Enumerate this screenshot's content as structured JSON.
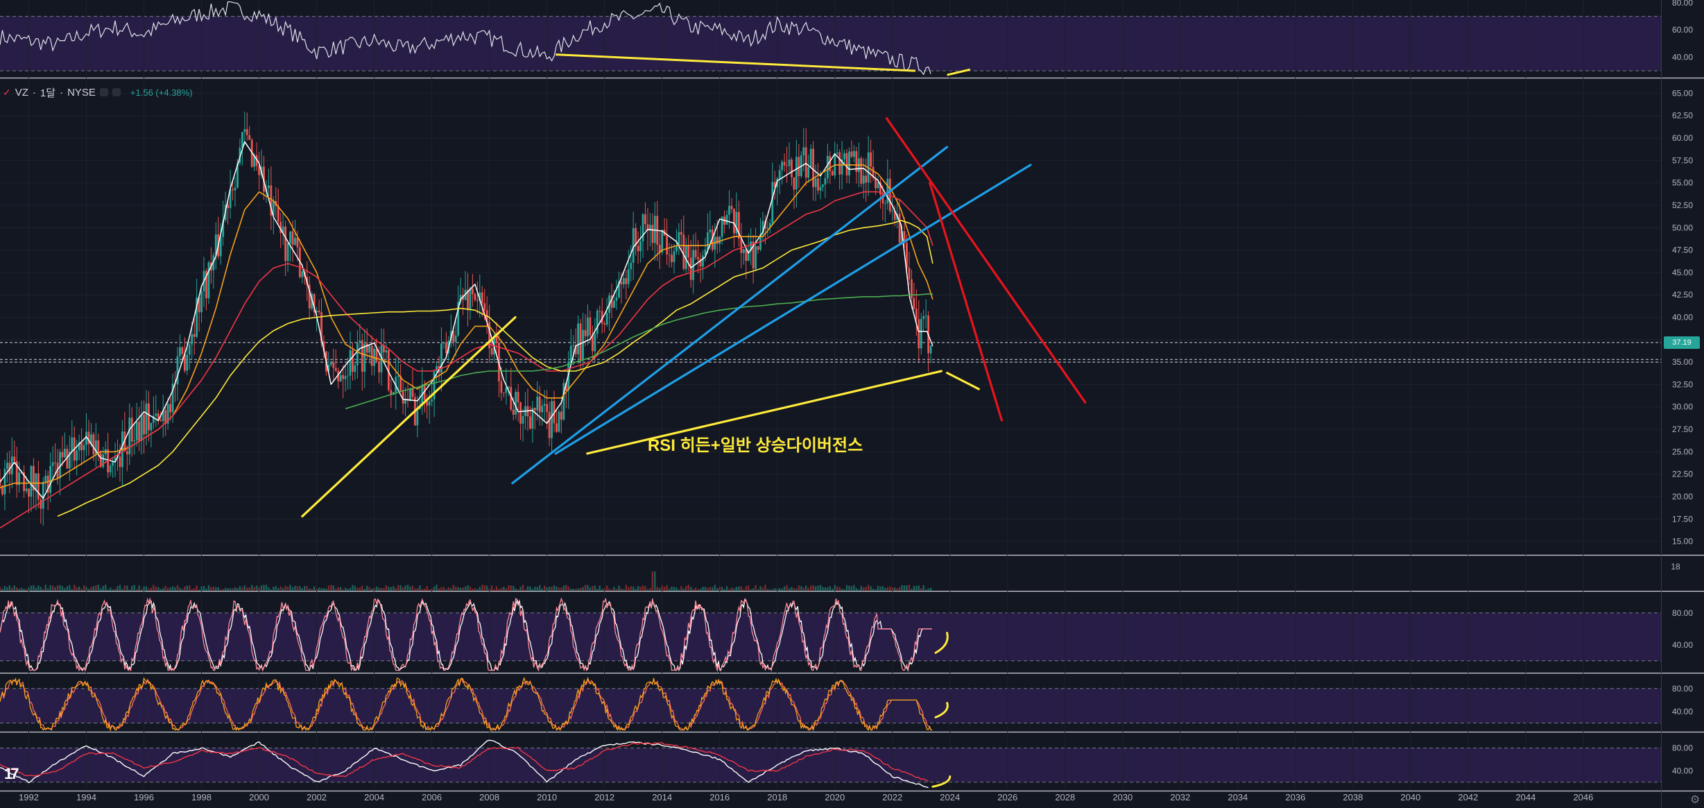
{
  "header": {
    "symbol": "VZ",
    "interval": "1달",
    "exchange": "NYSE",
    "separator": "·",
    "change": "+1.56 (+4.38%)"
  },
  "price_tag": "37.19",
  "annotation_text": "RSI 히든+일반 상승다이버전스",
  "volume_label": "18",
  "colors": {
    "background": "#131722",
    "oscillator_band": "#2a1e4a",
    "price_line": "#ffffff",
    "ma_orange": "#f7a21b",
    "ma_red": "#f23645",
    "ma_yellow": "#ffeb3b",
    "ma_green": "#4caf50",
    "trend_blue": "#1e9fe8",
    "trend_red": "#e8141c",
    "trend_yellow": "#ffeb3b",
    "up_candle": "#26a69a",
    "down_candle": "#ef5350"
  },
  "chart_data": [
    {
      "type": "line",
      "panel": "rsi",
      "yticks": [
        "80.00",
        "60.00",
        "40.00"
      ],
      "ylim": [
        25,
        82
      ],
      "band": [
        30,
        70
      ],
      "x": [
        1991,
        1992,
        1993,
        1994,
        1995,
        1996,
        1997,
        1998,
        1999,
        2000,
        2001,
        2002,
        2003,
        2004,
        2005,
        2006,
        2007,
        2008,
        2009,
        2010,
        2011,
        2012,
        2013,
        2014,
        2015,
        2016,
        2017,
        2018,
        2019,
        2020,
        2021,
        2022,
        2023.3
      ],
      "series": [
        {
          "values": [
            55,
            52,
            49,
            58,
            62,
            57,
            66,
            72,
            76,
            71,
            60,
            44,
            48,
            52,
            46,
            50,
            56,
            54,
            46,
            40,
            56,
            66,
            70,
            74,
            62,
            60,
            52,
            64,
            60,
            52,
            44,
            38,
            32
          ]
        }
      ],
      "divergence": {
        "x": [
          2010.3,
          2022.8
        ],
        "y": [
          42,
          30
        ]
      }
    },
    {
      "type": "line",
      "panel": "price",
      "symbol": "VZ",
      "yticks": [
        "65.00",
        "62.50",
        "60.00",
        "57.50",
        "55.00",
        "52.50",
        "50.00",
        "47.50",
        "45.00",
        "42.50",
        "40.00",
        "37.50",
        "35.00",
        "32.50",
        "30.00",
        "27.50",
        "25.00",
        "22.50",
        "20.00",
        "17.50",
        "15.00"
      ],
      "xticks": [
        "1992",
        "1994",
        "1996",
        "1998",
        "2000",
        "2002",
        "2004",
        "2006",
        "2008",
        "2010",
        "2012",
        "2014",
        "2016",
        "2018",
        "2020",
        "2022",
        "2024",
        "2026",
        "2028",
        "2030",
        "2032",
        "2034",
        "2036",
        "2038",
        "2040",
        "2042",
        "2044",
        "2046"
      ],
      "xlim": [
        1991,
        2048.7
      ],
      "ylim": [
        13.5,
        66.5
      ],
      "last_price": 37.19,
      "x": [
        1991,
        1991.5,
        1992,
        1992.5,
        1993,
        1993.5,
        1994,
        1994.5,
        1995,
        1995.5,
        1996,
        1996.5,
        1997,
        1997.5,
        1998,
        1998.5,
        1999,
        1999.5,
        2000,
        2000.5,
        2001,
        2001.5,
        2002,
        2002.5,
        2003,
        2003.5,
        2004,
        2004.5,
        2005,
        2005.5,
        2006,
        2006.5,
        2007,
        2007.5,
        2008,
        2008.5,
        2009,
        2009.5,
        2010,
        2010.5,
        2011,
        2011.5,
        2012,
        2012.5,
        2013,
        2013.5,
        2014,
        2014.5,
        2015,
        2015.5,
        2016,
        2016.5,
        2017,
        2017.5,
        2018,
        2018.5,
        2019,
        2019.5,
        2020,
        2020.5,
        2021,
        2021.5,
        2022,
        2022.3,
        2022.6,
        2022.9,
        2023.2,
        2023.4
      ],
      "series": [
        {
          "name": "",
          "values": [
            22,
            23.5,
            22,
            20.5,
            23,
            25,
            27,
            25,
            24,
            27,
            29,
            28,
            32,
            37,
            43,
            47,
            55,
            60,
            57,
            51,
            48,
            46,
            40,
            33,
            35,
            36,
            37,
            34,
            31,
            30,
            33,
            36,
            42,
            43,
            38,
            33,
            29,
            30,
            28,
            30,
            37,
            38,
            40,
            43,
            48,
            50,
            49,
            48,
            46,
            47,
            51,
            50,
            47,
            49,
            55,
            56,
            57,
            56,
            58,
            57,
            57,
            55,
            53,
            50,
            42,
            38,
            38,
            37.2
          ]
        },
        {
          "name": "",
          "values": [
            21,
            21.5,
            21.5,
            21.5,
            22,
            23,
            24,
            25,
            25,
            25.5,
            26.5,
            27.5,
            29,
            32,
            36,
            41,
            47,
            52,
            54,
            53,
            51,
            48,
            45,
            40,
            37,
            36,
            35.5,
            35,
            33,
            32,
            33,
            34,
            37,
            39,
            39,
            37,
            34,
            32,
            31,
            31,
            33,
            35,
            37,
            40,
            43,
            46,
            47.5,
            48,
            48,
            48,
            48.5,
            49,
            49,
            49,
            51,
            53,
            55,
            56,
            57,
            57,
            57,
            56,
            54,
            52,
            49,
            46,
            44,
            42
          ]
        },
        {
          "name": "",
          "values": [
            16.5,
            17.5,
            18.5,
            19.5,
            20.5,
            21.5,
            22.5,
            23.5,
            24.5,
            25.5,
            26.5,
            27.5,
            29,
            31,
            33,
            35.5,
            38.5,
            41.5,
            44,
            45.5,
            46,
            45.5,
            44.5,
            42.5,
            40.5,
            39,
            37.5,
            36.5,
            35,
            34,
            34,
            34.5,
            35.5,
            36.5,
            37,
            36.5,
            36,
            35,
            34,
            34,
            34.5,
            35,
            36.5,
            38,
            40,
            42,
            43.5,
            44.5,
            45,
            45.5,
            46.5,
            47.5,
            48,
            48.5,
            49.5,
            50.5,
            51.5,
            52,
            53,
            53.5,
            54,
            54,
            53.5,
            53,
            52,
            51,
            50,
            48
          ]
        },
        {
          "name": "",
          "values": [
            null,
            null,
            null,
            null,
            17.8,
            18.5,
            19.3,
            20,
            20.8,
            21.5,
            22.5,
            23.5,
            25,
            27,
            29,
            31,
            33.5,
            35.5,
            37.3,
            38.5,
            39.3,
            39.8,
            40,
            40.2,
            40.3,
            40.4,
            40.5,
            40.6,
            40.6,
            40.7,
            40.7,
            40.8,
            41,
            40.8,
            40,
            38.5,
            37,
            35.5,
            34.5,
            34,
            34,
            34.5,
            35,
            36,
            37.2,
            38.3,
            39.5,
            40.8,
            41.5,
            42.5,
            43.5,
            44.5,
            45,
            45.5,
            46.5,
            47.5,
            48,
            48.5,
            49.2,
            49.7,
            50,
            50.2,
            50.5,
            50.8,
            50.5,
            50,
            49,
            46
          ]
        },
        {
          "name": "",
          "values": [
            null,
            null,
            null,
            null,
            null,
            null,
            null,
            null,
            null,
            null,
            null,
            null,
            null,
            null,
            null,
            null,
            null,
            null,
            null,
            null,
            null,
            null,
            null,
            null,
            29.8,
            30.3,
            30.8,
            31.3,
            31.8,
            32.2,
            32.6,
            33,
            33.5,
            33.8,
            34,
            34,
            34,
            34,
            34.2,
            34.5,
            35,
            35.5,
            36.2,
            37,
            37.8,
            38.5,
            39.2,
            39.7,
            40.1,
            40.5,
            40.8,
            41,
            41.2,
            41.3,
            41.5,
            41.6,
            41.8,
            42,
            42.1,
            42.2,
            42.3,
            42.3,
            42.4,
            42.4,
            42.5,
            42.5,
            42.6,
            42.6
          ]
        }
      ],
      "trendlines": [
        {
          "color": "blue",
          "x": [
            2008.8,
            2023.9
          ],
          "y": [
            21.5,
            59
          ]
        },
        {
          "color": "blue",
          "x": [
            2010.3,
            2026.8
          ],
          "y": [
            24.8,
            57
          ]
        },
        {
          "color": "yellow",
          "x": [
            2001.5,
            2008.9
          ],
          "y": [
            17.8,
            40
          ]
        },
        {
          "color": "yellow",
          "x": [
            2011.4,
            2023.7
          ],
          "y": [
            24.8,
            34
          ]
        },
        {
          "color": "yellow",
          "x": [
            2023.9,
            2025
          ],
          "y": [
            33.8,
            32
          ]
        },
        {
          "color": "red",
          "x": [
            2021.8,
            2028.7
          ],
          "y": [
            62.2,
            30.5
          ]
        },
        {
          "color": "red",
          "x": [
            2023.3,
            2025.8
          ],
          "y": [
            55,
            28.5
          ]
        }
      ]
    },
    {
      "type": "bar",
      "panel": "volume",
      "ylabel": "18",
      "spike_year": 2013.7,
      "x_start": 1991,
      "x_end": 2023.4
    },
    {
      "type": "line",
      "panel": "stoch_rsi",
      "yticks": [
        "80.00",
        "40.00"
      ],
      "ylim": [
        5,
        105
      ],
      "band": [
        20,
        80
      ],
      "cycle_years": 1.6
    },
    {
      "type": "line",
      "panel": "stochastic",
      "yticks": [
        "80.00",
        "40.00"
      ],
      "ylim": [
        5,
        105
      ],
      "band": [
        20,
        80
      ],
      "cycle_years": 2.2
    },
    {
      "type": "line",
      "panel": "slow_oscillator",
      "yticks": [
        "80.00",
        "40.00"
      ],
      "ylim": [
        5,
        105
      ],
      "band": [
        20,
        80
      ],
      "x": [
        1991,
        1992,
        1993,
        1994,
        1995,
        1996,
        1997,
        1998,
        1999,
        2000,
        2001,
        2002,
        2003,
        2004,
        2005,
        2006,
        2007,
        2008,
        2009,
        2010,
        2011,
        2012,
        2013,
        2014,
        2015,
        2016,
        2017,
        2018,
        2019,
        2020,
        2021,
        2022,
        2023.3
      ],
      "series": [
        {
          "values": [
            45,
            20,
            55,
            85,
            60,
            30,
            70,
            80,
            65,
            90,
            50,
            20,
            40,
            80,
            60,
            40,
            50,
            95,
            70,
            20,
            60,
            85,
            90,
            85,
            75,
            60,
            20,
            50,
            75,
            80,
            70,
            30,
            10
          ]
        },
        {
          "values": [
            50,
            30,
            40,
            70,
            70,
            45,
            55,
            75,
            70,
            80,
            65,
            35,
            30,
            60,
            70,
            50,
            45,
            80,
            80,
            40,
            45,
            75,
            88,
            88,
            80,
            68,
            40,
            40,
            65,
            78,
            75,
            45,
            20
          ]
        }
      ]
    }
  ]
}
